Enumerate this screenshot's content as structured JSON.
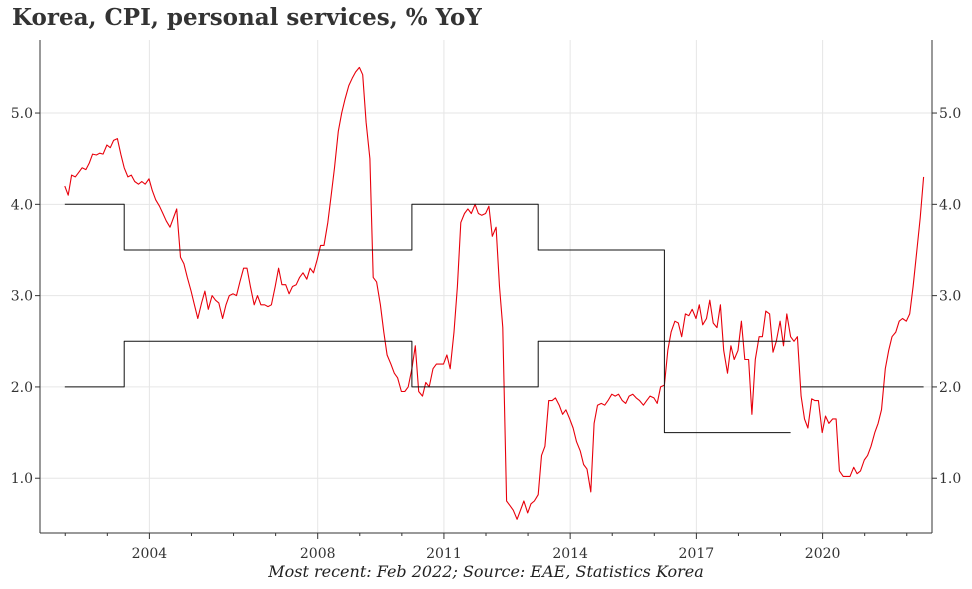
{
  "chart_data": {
    "type": "line",
    "title": "Korea, CPI, personal services, % YoY",
    "caption": "Most recent: Feb 2022; Source: EAE, Statistics Korea",
    "x_range": [
      2001.4,
      2022.6
    ],
    "y_range": [
      0.4,
      5.8
    ],
    "x_ticks": [
      2004,
      2008,
      2011,
      2014,
      2017,
      2020
    ],
    "y_ticks": [
      1.0,
      2.0,
      3.0,
      4.0,
      5.0
    ],
    "y_tick_labels": [
      "1.0",
      "2.0",
      "3.0",
      "4.0",
      "5.0"
    ],
    "grid": true,
    "colors": {
      "cpi": "#e8000b",
      "target": "#111111",
      "grid": "#e6e6e6",
      "axis": "#333333"
    },
    "series": [
      {
        "key": "cpi",
        "points": [
          [
            2001.99,
            4.2
          ],
          [
            2002.07,
            4.1
          ],
          [
            2002.15,
            4.32
          ],
          [
            2002.24,
            4.3
          ],
          [
            2002.32,
            4.35
          ],
          [
            2002.4,
            4.4
          ],
          [
            2002.49,
            4.38
          ],
          [
            2002.57,
            4.45
          ],
          [
            2002.65,
            4.55
          ],
          [
            2002.74,
            4.54
          ],
          [
            2002.82,
            4.56
          ],
          [
            2002.9,
            4.55
          ],
          [
            2002.99,
            4.65
          ],
          [
            2003.07,
            4.62
          ],
          [
            2003.15,
            4.7
          ],
          [
            2003.24,
            4.72
          ],
          [
            2003.32,
            4.55
          ],
          [
            2003.4,
            4.4
          ],
          [
            2003.49,
            4.3
          ],
          [
            2003.57,
            4.32
          ],
          [
            2003.65,
            4.25
          ],
          [
            2003.74,
            4.22
          ],
          [
            2003.82,
            4.25
          ],
          [
            2003.9,
            4.22
          ],
          [
            2003.99,
            4.28
          ],
          [
            2004.07,
            4.15
          ],
          [
            2004.15,
            4.05
          ],
          [
            2004.24,
            3.98
          ],
          [
            2004.32,
            3.9
          ],
          [
            2004.4,
            3.82
          ],
          [
            2004.49,
            3.75
          ],
          [
            2004.57,
            3.85
          ],
          [
            2004.65,
            3.95
          ],
          [
            2004.74,
            3.42
          ],
          [
            2004.82,
            3.35
          ],
          [
            2004.9,
            3.2
          ],
          [
            2004.99,
            3.05
          ],
          [
            2005.07,
            2.9
          ],
          [
            2005.15,
            2.75
          ],
          [
            2005.24,
            2.92
          ],
          [
            2005.32,
            3.05
          ],
          [
            2005.4,
            2.85
          ],
          [
            2005.49,
            3.0
          ],
          [
            2005.57,
            2.95
          ],
          [
            2005.65,
            2.92
          ],
          [
            2005.74,
            2.75
          ],
          [
            2005.82,
            2.9
          ],
          [
            2005.9,
            3.0
          ],
          [
            2005.99,
            3.02
          ],
          [
            2006.07,
            3.0
          ],
          [
            2006.15,
            3.15
          ],
          [
            2006.24,
            3.3
          ],
          [
            2006.32,
            3.3
          ],
          [
            2006.4,
            3.1
          ],
          [
            2006.49,
            2.9
          ],
          [
            2006.57,
            3.0
          ],
          [
            2006.65,
            2.9
          ],
          [
            2006.74,
            2.9
          ],
          [
            2006.82,
            2.88
          ],
          [
            2006.9,
            2.9
          ],
          [
            2006.99,
            3.1
          ],
          [
            2007.07,
            3.3
          ],
          [
            2007.15,
            3.12
          ],
          [
            2007.24,
            3.12
          ],
          [
            2007.32,
            3.02
          ],
          [
            2007.4,
            3.1
          ],
          [
            2007.49,
            3.12
          ],
          [
            2007.57,
            3.2
          ],
          [
            2007.65,
            3.25
          ],
          [
            2007.74,
            3.18
          ],
          [
            2007.82,
            3.3
          ],
          [
            2007.9,
            3.25
          ],
          [
            2007.99,
            3.4
          ],
          [
            2008.07,
            3.55
          ],
          [
            2008.15,
            3.55
          ],
          [
            2008.24,
            3.8
          ],
          [
            2008.32,
            4.1
          ],
          [
            2008.4,
            4.4
          ],
          [
            2008.49,
            4.8
          ],
          [
            2008.57,
            5.0
          ],
          [
            2008.65,
            5.15
          ],
          [
            2008.74,
            5.3
          ],
          [
            2008.82,
            5.38
          ],
          [
            2008.9,
            5.45
          ],
          [
            2008.99,
            5.5
          ],
          [
            2009.07,
            5.42
          ],
          [
            2009.15,
            4.9
          ],
          [
            2009.24,
            4.5
          ],
          [
            2009.32,
            3.2
          ],
          [
            2009.4,
            3.15
          ],
          [
            2009.49,
            2.9
          ],
          [
            2009.57,
            2.6
          ],
          [
            2009.65,
            2.35
          ],
          [
            2009.74,
            2.25
          ],
          [
            2009.82,
            2.15
          ],
          [
            2009.9,
            2.1
          ],
          [
            2009.99,
            1.95
          ],
          [
            2010.07,
            1.95
          ],
          [
            2010.15,
            2.0
          ],
          [
            2010.24,
            2.2
          ],
          [
            2010.32,
            2.45
          ],
          [
            2010.4,
            1.95
          ],
          [
            2010.49,
            1.9
          ],
          [
            2010.57,
            2.05
          ],
          [
            2010.65,
            2.0
          ],
          [
            2010.74,
            2.2
          ],
          [
            2010.82,
            2.25
          ],
          [
            2010.9,
            2.25
          ],
          [
            2010.99,
            2.25
          ],
          [
            2011.07,
            2.35
          ],
          [
            2011.15,
            2.2
          ],
          [
            2011.24,
            2.6
          ],
          [
            2011.32,
            3.1
          ],
          [
            2011.4,
            3.8
          ],
          [
            2011.49,
            3.9
          ],
          [
            2011.57,
            3.95
          ],
          [
            2011.65,
            3.9
          ],
          [
            2011.74,
            4.0
          ],
          [
            2011.82,
            3.9
          ],
          [
            2011.9,
            3.88
          ],
          [
            2011.99,
            3.9
          ],
          [
            2012.07,
            3.98
          ],
          [
            2012.15,
            3.65
          ],
          [
            2012.24,
            3.75
          ],
          [
            2012.32,
            3.1
          ],
          [
            2012.4,
            2.65
          ],
          [
            2012.49,
            0.75
          ],
          [
            2012.57,
            0.7
          ],
          [
            2012.65,
            0.65
          ],
          [
            2012.74,
            0.55
          ],
          [
            2012.82,
            0.65
          ],
          [
            2012.9,
            0.75
          ],
          [
            2012.99,
            0.62
          ],
          [
            2013.07,
            0.72
          ],
          [
            2013.15,
            0.75
          ],
          [
            2013.24,
            0.82
          ],
          [
            2013.32,
            1.25
          ],
          [
            2013.4,
            1.35
          ],
          [
            2013.49,
            1.85
          ],
          [
            2013.57,
            1.85
          ],
          [
            2013.65,
            1.88
          ],
          [
            2013.74,
            1.8
          ],
          [
            2013.82,
            1.7
          ],
          [
            2013.9,
            1.75
          ],
          [
            2013.99,
            1.65
          ],
          [
            2014.07,
            1.55
          ],
          [
            2014.15,
            1.4
          ],
          [
            2014.24,
            1.3
          ],
          [
            2014.32,
            1.15
          ],
          [
            2014.4,
            1.1
          ],
          [
            2014.49,
            0.85
          ],
          [
            2014.57,
            1.6
          ],
          [
            2014.65,
            1.8
          ],
          [
            2014.74,
            1.82
          ],
          [
            2014.82,
            1.8
          ],
          [
            2014.9,
            1.85
          ],
          [
            2014.99,
            1.92
          ],
          [
            2015.07,
            1.9
          ],
          [
            2015.15,
            1.92
          ],
          [
            2015.24,
            1.85
          ],
          [
            2015.32,
            1.82
          ],
          [
            2015.4,
            1.9
          ],
          [
            2015.49,
            1.92
          ],
          [
            2015.57,
            1.88
          ],
          [
            2015.65,
            1.85
          ],
          [
            2015.74,
            1.8
          ],
          [
            2015.82,
            1.85
          ],
          [
            2015.9,
            1.9
          ],
          [
            2015.99,
            1.88
          ],
          [
            2016.07,
            1.82
          ],
          [
            2016.15,
            2.0
          ],
          [
            2016.24,
            2.02
          ],
          [
            2016.32,
            2.4
          ],
          [
            2016.4,
            2.6
          ],
          [
            2016.49,
            2.72
          ],
          [
            2016.57,
            2.7
          ],
          [
            2016.65,
            2.55
          ],
          [
            2016.74,
            2.8
          ],
          [
            2016.82,
            2.78
          ],
          [
            2016.9,
            2.85
          ],
          [
            2016.99,
            2.75
          ],
          [
            2017.07,
            2.9
          ],
          [
            2017.15,
            2.68
          ],
          [
            2017.24,
            2.75
          ],
          [
            2017.32,
            2.95
          ],
          [
            2017.4,
            2.7
          ],
          [
            2017.49,
            2.65
          ],
          [
            2017.57,
            2.9
          ],
          [
            2017.65,
            2.4
          ],
          [
            2017.74,
            2.15
          ],
          [
            2017.82,
            2.45
          ],
          [
            2017.9,
            2.3
          ],
          [
            2017.99,
            2.4
          ],
          [
            2018.07,
            2.72
          ],
          [
            2018.15,
            2.3
          ],
          [
            2018.24,
            2.3
          ],
          [
            2018.32,
            1.7
          ],
          [
            2018.4,
            2.3
          ],
          [
            2018.49,
            2.55
          ],
          [
            2018.57,
            2.55
          ],
          [
            2018.65,
            2.83
          ],
          [
            2018.74,
            2.8
          ],
          [
            2018.82,
            2.38
          ],
          [
            2018.9,
            2.5
          ],
          [
            2018.99,
            2.72
          ],
          [
            2019.07,
            2.45
          ],
          [
            2019.15,
            2.8
          ],
          [
            2019.24,
            2.55
          ],
          [
            2019.32,
            2.5
          ],
          [
            2019.4,
            2.55
          ],
          [
            2019.49,
            1.9
          ],
          [
            2019.57,
            1.65
          ],
          [
            2019.65,
            1.55
          ],
          [
            2019.74,
            1.87
          ],
          [
            2019.82,
            1.85
          ],
          [
            2019.9,
            1.85
          ],
          [
            2019.99,
            1.5
          ],
          [
            2020.07,
            1.68
          ],
          [
            2020.15,
            1.6
          ],
          [
            2020.24,
            1.65
          ],
          [
            2020.32,
            1.65
          ],
          [
            2020.4,
            1.08
          ],
          [
            2020.49,
            1.02
          ],
          [
            2020.57,
            1.02
          ],
          [
            2020.65,
            1.02
          ],
          [
            2020.74,
            1.12
          ],
          [
            2020.82,
            1.05
          ],
          [
            2020.9,
            1.08
          ],
          [
            2020.99,
            1.2
          ],
          [
            2021.07,
            1.25
          ],
          [
            2021.15,
            1.35
          ],
          [
            2021.24,
            1.5
          ],
          [
            2021.32,
            1.6
          ],
          [
            2021.4,
            1.75
          ],
          [
            2021.49,
            2.2
          ],
          [
            2021.57,
            2.4
          ],
          [
            2021.65,
            2.55
          ],
          [
            2021.74,
            2.6
          ],
          [
            2021.82,
            2.72
          ],
          [
            2021.9,
            2.75
          ],
          [
            2021.99,
            2.72
          ],
          [
            2022.07,
            2.8
          ],
          [
            2022.15,
            3.1
          ],
          [
            2022.24,
            3.5
          ],
          [
            2022.32,
            3.85
          ],
          [
            2022.4,
            4.3
          ]
        ]
      },
      {
        "key": "target",
        "points": [
          [
            2001.99,
            4.0
          ],
          [
            2003.4,
            4.0
          ],
          [
            2003.4,
            3.5
          ],
          [
            2010.24,
            3.5
          ],
          [
            2010.24,
            4.0
          ],
          [
            2013.24,
            4.0
          ],
          [
            2013.24,
            3.5
          ],
          [
            2016.24,
            3.5
          ],
          [
            2016.24,
            1.5
          ],
          [
            2019.24,
            1.5
          ]
        ]
      },
      {
        "key": "target",
        "points": [
          [
            2001.99,
            2.0
          ],
          [
            2003.4,
            2.0
          ],
          [
            2003.4,
            2.5
          ],
          [
            2010.24,
            2.5
          ],
          [
            2010.24,
            2.0
          ],
          [
            2013.24,
            2.0
          ],
          [
            2013.24,
            2.5
          ],
          [
            2019.24,
            2.5
          ]
        ]
      },
      {
        "key": "target",
        "points": [
          [
            2019.49,
            2.0
          ],
          [
            2022.4,
            2.0
          ]
        ]
      }
    ]
  }
}
